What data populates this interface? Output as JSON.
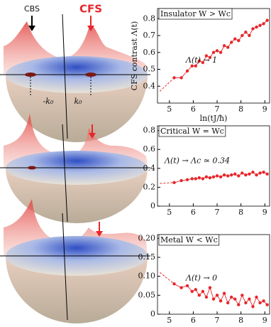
{
  "illustration": {
    "cbs_label": "CBS",
    "cfs_label": "CFS",
    "k_minus": "-k₀",
    "k_plus": "k₀"
  },
  "chart_data": [
    {
      "type": "line",
      "title": "Insulator W > Wc",
      "annotation": "Λ(t) → 1",
      "y_label": "CFS contrast Λ(t)",
      "x_label": "ln(tJ/ħ)",
      "color": "#e8262b",
      "x": [
        4.6,
        5.2,
        5.5,
        5.75,
        5.95,
        6.1,
        6.25,
        6.4,
        6.55,
        6.7,
        6.85,
        7.0,
        7.15,
        7.3,
        7.45,
        7.6,
        7.75,
        7.9,
        8.05,
        8.2,
        8.35,
        8.5,
        8.65,
        8.8,
        8.95,
        9.1
      ],
      "values": [
        0.37,
        0.45,
        0.45,
        0.49,
        0.52,
        0.52,
        0.55,
        0.54,
        0.58,
        0.57,
        0.6,
        0.61,
        0.6,
        0.64,
        0.63,
        0.66,
        0.68,
        0.67,
        0.7,
        0.72,
        0.7,
        0.74,
        0.75,
        0.76,
        0.77,
        0.79
      ],
      "xlim": [
        4.5,
        9.2
      ],
      "xticks": [
        5,
        6,
        7,
        8,
        9
      ],
      "ylim": [
        0.3,
        0.86
      ],
      "yticks": [
        0.4,
        0.5,
        0.6,
        0.7,
        0.8
      ]
    },
    {
      "type": "line",
      "title": "Critical W = Wc",
      "annotation": "Λ(t) → Λc ≃ 0.34",
      "color": "#e8262b",
      "x": [
        4.6,
        5.2,
        5.5,
        5.75,
        5.95,
        6.1,
        6.25,
        6.4,
        6.55,
        6.7,
        6.85,
        7.0,
        7.15,
        7.3,
        7.45,
        7.6,
        7.75,
        7.9,
        8.05,
        8.2,
        8.35,
        8.5,
        8.65,
        8.8,
        8.95,
        9.1
      ],
      "values": [
        0.24,
        0.25,
        0.27,
        0.28,
        0.29,
        0.29,
        0.3,
        0.29,
        0.31,
        0.3,
        0.31,
        0.32,
        0.31,
        0.33,
        0.32,
        0.33,
        0.34,
        0.32,
        0.35,
        0.33,
        0.34,
        0.36,
        0.33,
        0.35,
        0.36,
        0.34
      ],
      "xlim": [
        4.5,
        9.2
      ],
      "xticks": [
        5,
        6,
        7,
        8,
        9
      ],
      "ylim": [
        0,
        0.85
      ],
      "yticks": [
        0,
        0.2,
        0.4,
        0.6,
        0.8
      ]
    },
    {
      "type": "line",
      "title": "Metal W < Wc",
      "annotation": "Λ(t) → 0",
      "color": "#e8262b",
      "x": [
        4.6,
        5.2,
        5.5,
        5.75,
        5.95,
        6.1,
        6.25,
        6.4,
        6.55,
        6.7,
        6.85,
        7.0,
        7.15,
        7.3,
        7.45,
        7.6,
        7.75,
        7.9,
        8.05,
        8.2,
        8.35,
        8.5,
        8.65,
        8.8,
        8.95,
        9.1
      ],
      "values": [
        0.11,
        0.08,
        0.07,
        0.075,
        0.06,
        0.065,
        0.05,
        0.06,
        0.045,
        0.07,
        0.04,
        0.05,
        0.035,
        0.055,
        0.03,
        0.045,
        0.04,
        0.025,
        0.05,
        0.03,
        0.04,
        0.02,
        0.045,
        0.03,
        0.035,
        0.025
      ],
      "xlim": [
        4.5,
        9.2
      ],
      "xticks": [
        5,
        6,
        7,
        8,
        9
      ],
      "ylim": [
        0,
        0.21
      ],
      "yticks": [
        0,
        0.05,
        {
          "value": 0.1,
          "label": "0.10"
        },
        0.15,
        {
          "value": 0.2,
          "label": "0.20"
        }
      ]
    }
  ]
}
